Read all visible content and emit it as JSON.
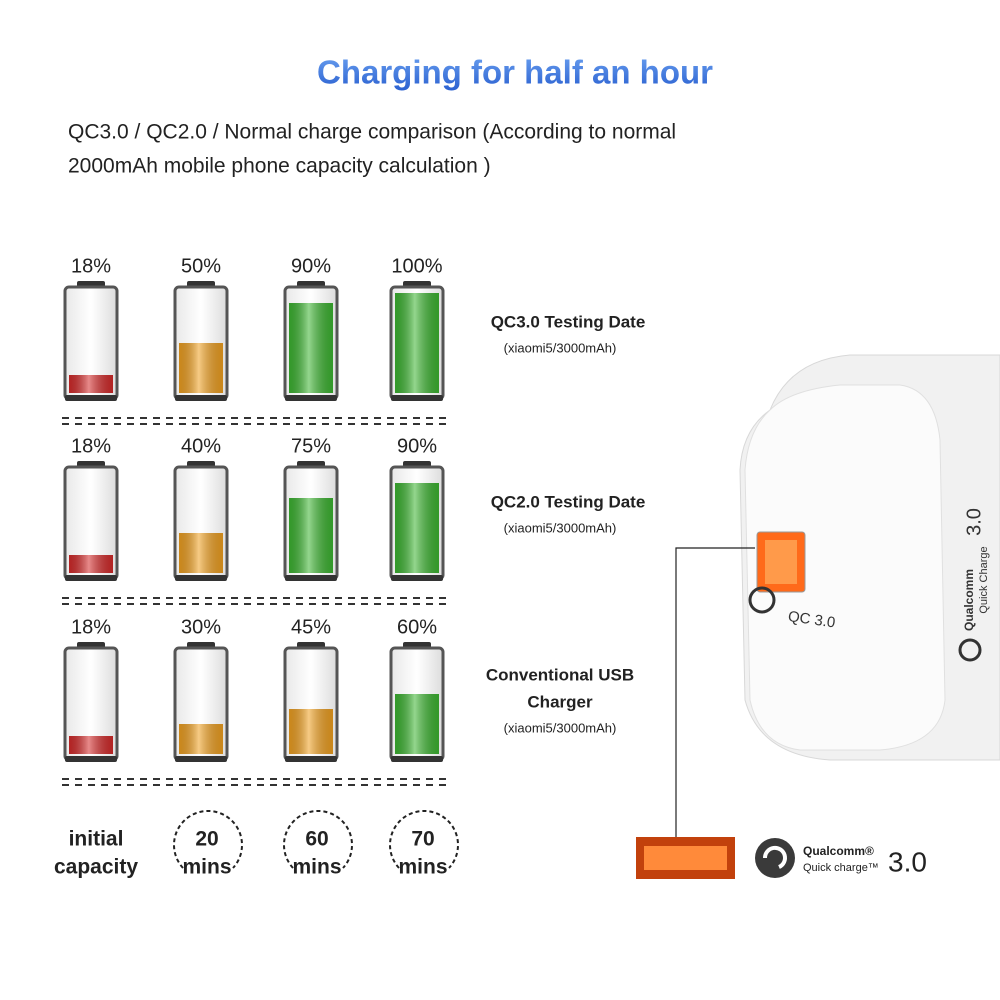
{
  "header": {
    "title": "Charging for half an hour",
    "subtitle_lines": [
      "QC3.0 / QC2.0 / Normal charge comparison (According to normal",
      "2000mAh mobile phone capacity calculation )"
    ]
  },
  "rows": [
    {
      "title_lines": [
        "QC3.0 Testing Date"
      ],
      "note": "(xiaomi5/3000mAh)",
      "values": [
        18,
        50,
        90,
        100
      ],
      "value_labels": [
        "18%",
        "50%",
        "90%",
        "100%"
      ],
      "colors": [
        "#d42a2a",
        "#f0a020",
        "#3cb531",
        "#3cb531"
      ]
    },
    {
      "title_lines": [
        "QC2.0 Testing Date"
      ],
      "note": "(xiaomi5/3000mAh)",
      "values": [
        18,
        40,
        75,
        90
      ],
      "value_labels": [
        "18%",
        "40%",
        "75%",
        "90%"
      ],
      "colors": [
        "#d42a2a",
        "#f0a020",
        "#3cb531",
        "#3cb531"
      ]
    },
    {
      "title_lines": [
        "Conventional USB",
        "Charger"
      ],
      "note": "(xiaomi5/3000mAh)",
      "values": [
        18,
        30,
        45,
        60
      ],
      "value_labels": [
        "18%",
        "30%",
        "45%",
        "60%"
      ],
      "colors": [
        "#d42a2a",
        "#f0a020",
        "#f0a020",
        "#3cb531"
      ]
    }
  ],
  "columns": [
    {
      "lines": [
        "initial",
        "capacity"
      ]
    },
    {
      "lines": [
        "20",
        "mins"
      ]
    },
    {
      "lines": [
        "60",
        "mins"
      ]
    },
    {
      "lines": [
        "70",
        "mins"
      ]
    }
  ],
  "product": {
    "port_badge": "QC 3.0",
    "side_brand": "Qualcomm",
    "side_text": "Quick Charge",
    "side_version": "3.0",
    "logo_brand": "Qualcomm®",
    "logo_text": "Quick charge™",
    "logo_version": "3.0"
  }
}
